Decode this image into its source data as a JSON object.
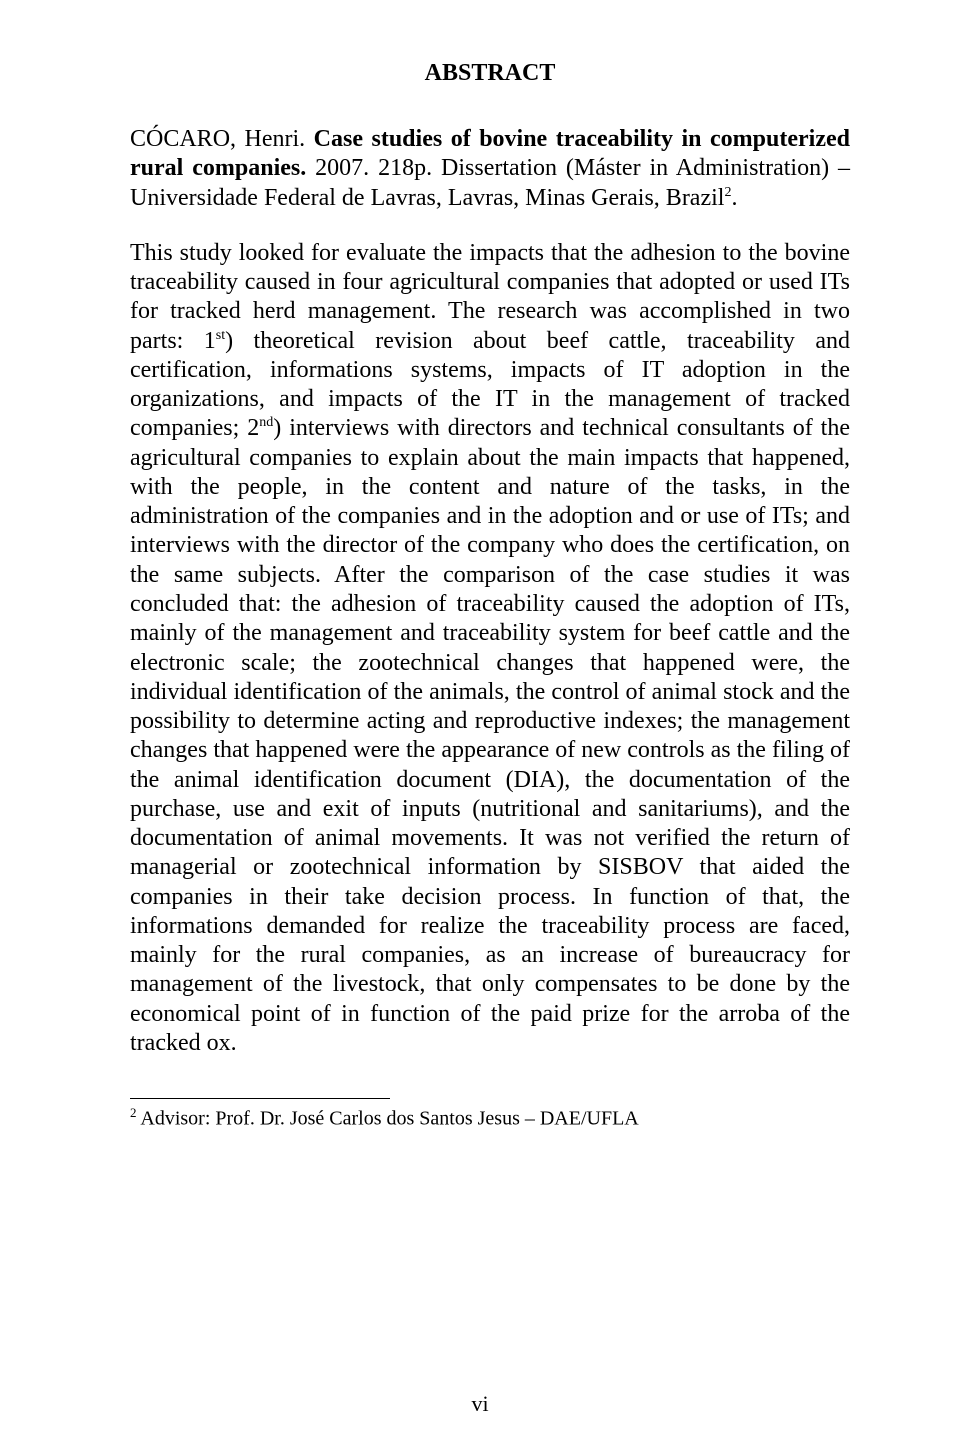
{
  "heading": "ABSTRACT",
  "citation": {
    "author": "CÓCARO, Henri. ",
    "title_bold": "Case studies of bovine traceability in computerized rural companies.",
    "year_pages": " 2007. 218p. Dissertation (Máster in Administration) – Universidade Federal de Lavras, Lavras, Minas Gerais, Brazil",
    "note_marker": "2",
    "period": "."
  },
  "body": {
    "pre1": "This study looked for evaluate the impacts that the adhesion to the bovine traceability caused in four agricultural companies that adopted or used ITs for tracked herd management. The research was accomplished in two parts: 1",
    "sup1": "st",
    "mid1": ") theoretical revision about beef cattle, traceability and certification, informations systems, impacts of IT adoption in the organizations, and impacts of the IT in the management of tracked companies; 2",
    "sup2": "nd",
    "rest": ") interviews with directors and technical consultants of the agricultural companies to explain about the main impacts that happened, with the people, in the content and nature of the tasks, in the administration of the companies and in the adoption and or use of ITs; and interviews with the director of the company who does the certification, on the same subjects. After the comparison of the case studies it was concluded that: the adhesion of traceability caused the adoption of ITs, mainly of the management and traceability system for beef cattle and the electronic scale; the zootechnical changes that happened were, the individual identification of the animals, the control of animal stock and the possibility to determine acting and reproductive indexes; the management changes that happened were the appearance of new controls as the filing of the animal identification document (DIA), the documentation of the purchase, use and exit of inputs (nutritional and sanitariums), and the documentation of animal movements. It was not verified the return of managerial or zootechnical information by SISBOV that aided the companies in their take decision process. In function of that, the informations demanded for realize the traceability process are faced, mainly for the rural companies, as an increase of bureaucracy for management of the livestock, that only compensates to be done by the economical point of in function of the paid prize for the arroba of the tracked ox."
  },
  "footnote": {
    "marker": "2",
    "text": " Advisor: Prof. Dr. José Carlos dos Santos Jesus – DAE/UFLA"
  },
  "page_number": "vi"
}
